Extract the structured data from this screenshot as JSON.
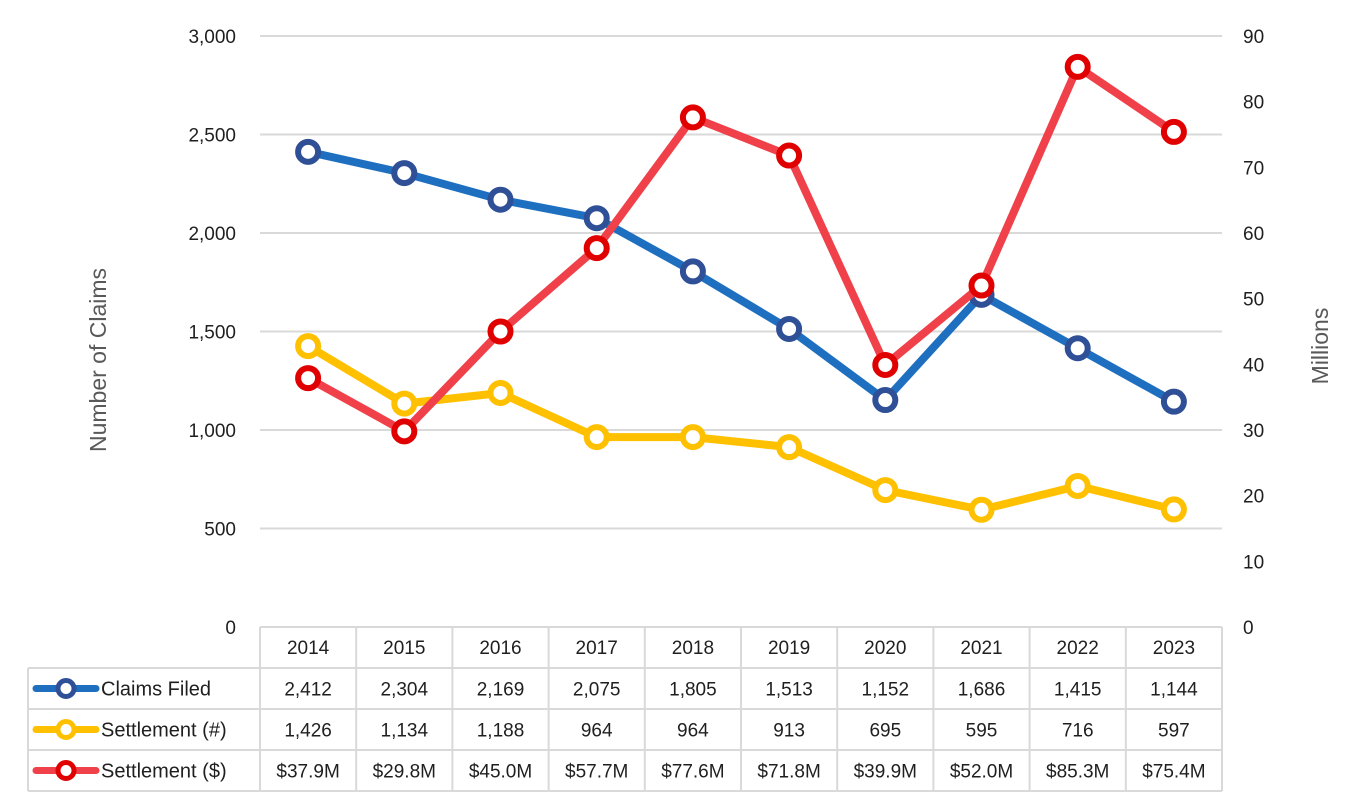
{
  "chart_data": {
    "type": "line",
    "categories": [
      "2014",
      "2015",
      "2016",
      "2017",
      "2018",
      "2019",
      "2020",
      "2021",
      "2022",
      "2023"
    ],
    "y_left": {
      "label": "Number of Claims",
      "min": 0,
      "max": 3000,
      "step": 500,
      "tick_labels": [
        "0",
        "500",
        "1,000",
        "1,500",
        "2,000",
        "2,500",
        "3,000"
      ]
    },
    "y_right": {
      "label": "Millions",
      "min": 0,
      "max": 90,
      "step": 10,
      "tick_labels": [
        "0",
        "10",
        "20",
        "30",
        "40",
        "50",
        "60",
        "70",
        "80",
        "90"
      ]
    },
    "grid": true,
    "legend_placement": "data-table",
    "series": [
      {
        "name": "Claims Filed",
        "axis": "left",
        "color": "#1f6fc0",
        "marker_color": "#2f4f96",
        "values": [
          2412,
          2304,
          2169,
          2075,
          1805,
          1513,
          1152,
          1686,
          1415,
          1144
        ],
        "table_labels": [
          "2,412",
          "2,304",
          "2,169",
          "2,075",
          "1,805",
          "1,513",
          "1,152",
          "1,686",
          "1,415",
          "1,144"
        ]
      },
      {
        "name": "Settlement (#)",
        "axis": "left",
        "color": "#ffc000",
        "marker_color": "#ffc000",
        "values": [
          1426,
          1134,
          1188,
          964,
          964,
          913,
          695,
          595,
          716,
          597
        ],
        "table_labels": [
          "1,426",
          "1,134",
          "1,188",
          "964",
          "964",
          "913",
          "695",
          "595",
          "716",
          "597"
        ]
      },
      {
        "name": "Settlement ($)",
        "axis": "right",
        "color": "#f0414a",
        "marker_color": "#e00000",
        "values": [
          37.9,
          29.8,
          45.0,
          57.7,
          77.6,
          71.8,
          39.9,
          52.0,
          85.3,
          75.4
        ],
        "table_labels": [
          "$37.9M",
          "$29.8M",
          "$45.0M",
          "$57.7M",
          "$77.6M",
          "$71.8M",
          "$39.9M",
          "$52.0M",
          "$85.3M",
          "$75.4M"
        ]
      }
    ]
  }
}
